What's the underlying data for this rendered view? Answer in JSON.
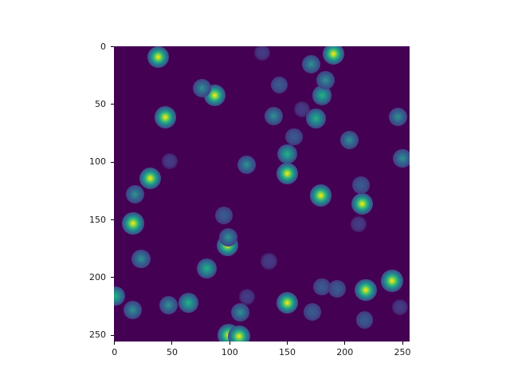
{
  "figure": {
    "background_color": "#ffffff"
  },
  "chart_data": {
    "type": "heatmap",
    "title": "",
    "xlabel": "",
    "ylabel": "",
    "colormap": "viridis",
    "background_color": "#440154",
    "grid": false,
    "legend": false,
    "xlim": [
      -0.5,
      255.5
    ],
    "ylim": [
      255.5,
      -0.5
    ],
    "y_axis_inverted": true,
    "x_ticks": [
      0,
      50,
      100,
      150,
      200,
      250
    ],
    "y_ticks": [
      0,
      50,
      100,
      150,
      200,
      250
    ],
    "levels": {
      "bright": {
        "r": 9.5,
        "stops": [
          [
            "#f5e61f",
            0
          ],
          [
            "#c2df23",
            10
          ],
          [
            "#54c568",
            24
          ],
          [
            "#1fa188",
            38
          ],
          [
            "#2c728e",
            54
          ],
          [
            "#3d4e8a",
            70
          ],
          [
            "#46327e",
            84
          ],
          [
            "transparent",
            100
          ]
        ]
      },
      "green": {
        "r": 8.5,
        "stops": [
          [
            "#2ab07f",
            0
          ],
          [
            "#21918c",
            25
          ],
          [
            "#2c728e",
            45
          ],
          [
            "#3f4889",
            68
          ],
          [
            "#46327e",
            84
          ],
          [
            "transparent",
            100
          ]
        ]
      },
      "cyan": {
        "r": 8.0,
        "stops": [
          [
            "#2e938e",
            0
          ],
          [
            "#31688e",
            35
          ],
          [
            "#3f4889",
            62
          ],
          [
            "#46327e",
            84
          ],
          [
            "transparent",
            100
          ]
        ]
      },
      "dim": {
        "r": 7.5,
        "stops": [
          [
            "#355e8d",
            0
          ],
          [
            "#3d4e8a",
            40
          ],
          [
            "#453781",
            70
          ],
          [
            "transparent",
            100
          ]
        ]
      },
      "vfaint": {
        "r": 7.0,
        "stops": [
          [
            "#433e85",
            0
          ],
          [
            "#46327e",
            50
          ],
          [
            "transparent",
            90
          ]
        ]
      }
    },
    "points": [
      {
        "x": 38,
        "y": 9,
        "level": "bright"
      },
      {
        "x": 190,
        "y": 6,
        "level": "bright"
      },
      {
        "x": 87,
        "y": 42,
        "level": "bright"
      },
      {
        "x": 44,
        "y": 61,
        "level": "bright"
      },
      {
        "x": 150,
        "y": 110,
        "level": "bright"
      },
      {
        "x": 31,
        "y": 114,
        "level": "bright"
      },
      {
        "x": 179,
        "y": 129,
        "level": "bright"
      },
      {
        "x": 215,
        "y": 136,
        "level": "bright"
      },
      {
        "x": 16,
        "y": 153,
        "level": "bright"
      },
      {
        "x": 98,
        "y": 172,
        "level": "bright"
      },
      {
        "x": 241,
        "y": 203,
        "level": "bright"
      },
      {
        "x": 218,
        "y": 211,
        "level": "bright"
      },
      {
        "x": 150,
        "y": 222,
        "level": "bright"
      },
      {
        "x": 99,
        "y": 250,
        "level": "bright"
      },
      {
        "x": 108,
        "y": 251,
        "level": "bright"
      },
      {
        "x": 180,
        "y": 42,
        "level": "green"
      },
      {
        "x": 175,
        "y": 62,
        "level": "green"
      },
      {
        "x": 150,
        "y": 93,
        "level": "green"
      },
      {
        "x": 80,
        "y": 192,
        "level": "green"
      },
      {
        "x": 1,
        "y": 216,
        "level": "green"
      },
      {
        "x": 64,
        "y": 222,
        "level": "green"
      },
      {
        "x": 171,
        "y": 15,
        "level": "cyan"
      },
      {
        "x": 183,
        "y": 29,
        "level": "cyan"
      },
      {
        "x": 76,
        "y": 36,
        "level": "cyan"
      },
      {
        "x": 138,
        "y": 60,
        "level": "cyan"
      },
      {
        "x": 246,
        "y": 61,
        "level": "cyan"
      },
      {
        "x": 204,
        "y": 81,
        "level": "cyan"
      },
      {
        "x": 250,
        "y": 97,
        "level": "cyan"
      },
      {
        "x": 115,
        "y": 102,
        "level": "cyan"
      },
      {
        "x": 18,
        "y": 128,
        "level": "cyan"
      },
      {
        "x": 99,
        "y": 165,
        "level": "cyan"
      },
      {
        "x": 23,
        "y": 184,
        "level": "cyan"
      },
      {
        "x": 47,
        "y": 224,
        "level": "cyan"
      },
      {
        "x": 16,
        "y": 228,
        "level": "cyan"
      },
      {
        "x": 109,
        "y": 230,
        "level": "cyan"
      },
      {
        "x": 143,
        "y": 33,
        "level": "dim"
      },
      {
        "x": 156,
        "y": 78,
        "level": "dim"
      },
      {
        "x": 214,
        "y": 120,
        "level": "dim"
      },
      {
        "x": 95,
        "y": 146,
        "level": "dim"
      },
      {
        "x": 180,
        "y": 208,
        "level": "dim"
      },
      {
        "x": 193,
        "y": 210,
        "level": "dim"
      },
      {
        "x": 172,
        "y": 230,
        "level": "dim"
      },
      {
        "x": 217,
        "y": 237,
        "level": "dim"
      },
      {
        "x": 128,
        "y": 5,
        "level": "vfaint"
      },
      {
        "x": 163,
        "y": 54,
        "level": "vfaint"
      },
      {
        "x": 48,
        "y": 99,
        "level": "vfaint"
      },
      {
        "x": 212,
        "y": 154,
        "level": "vfaint"
      },
      {
        "x": 134,
        "y": 186,
        "level": "vfaint"
      },
      {
        "x": 115,
        "y": 217,
        "level": "vfaint"
      },
      {
        "x": 248,
        "y": 226,
        "level": "vfaint"
      }
    ]
  }
}
